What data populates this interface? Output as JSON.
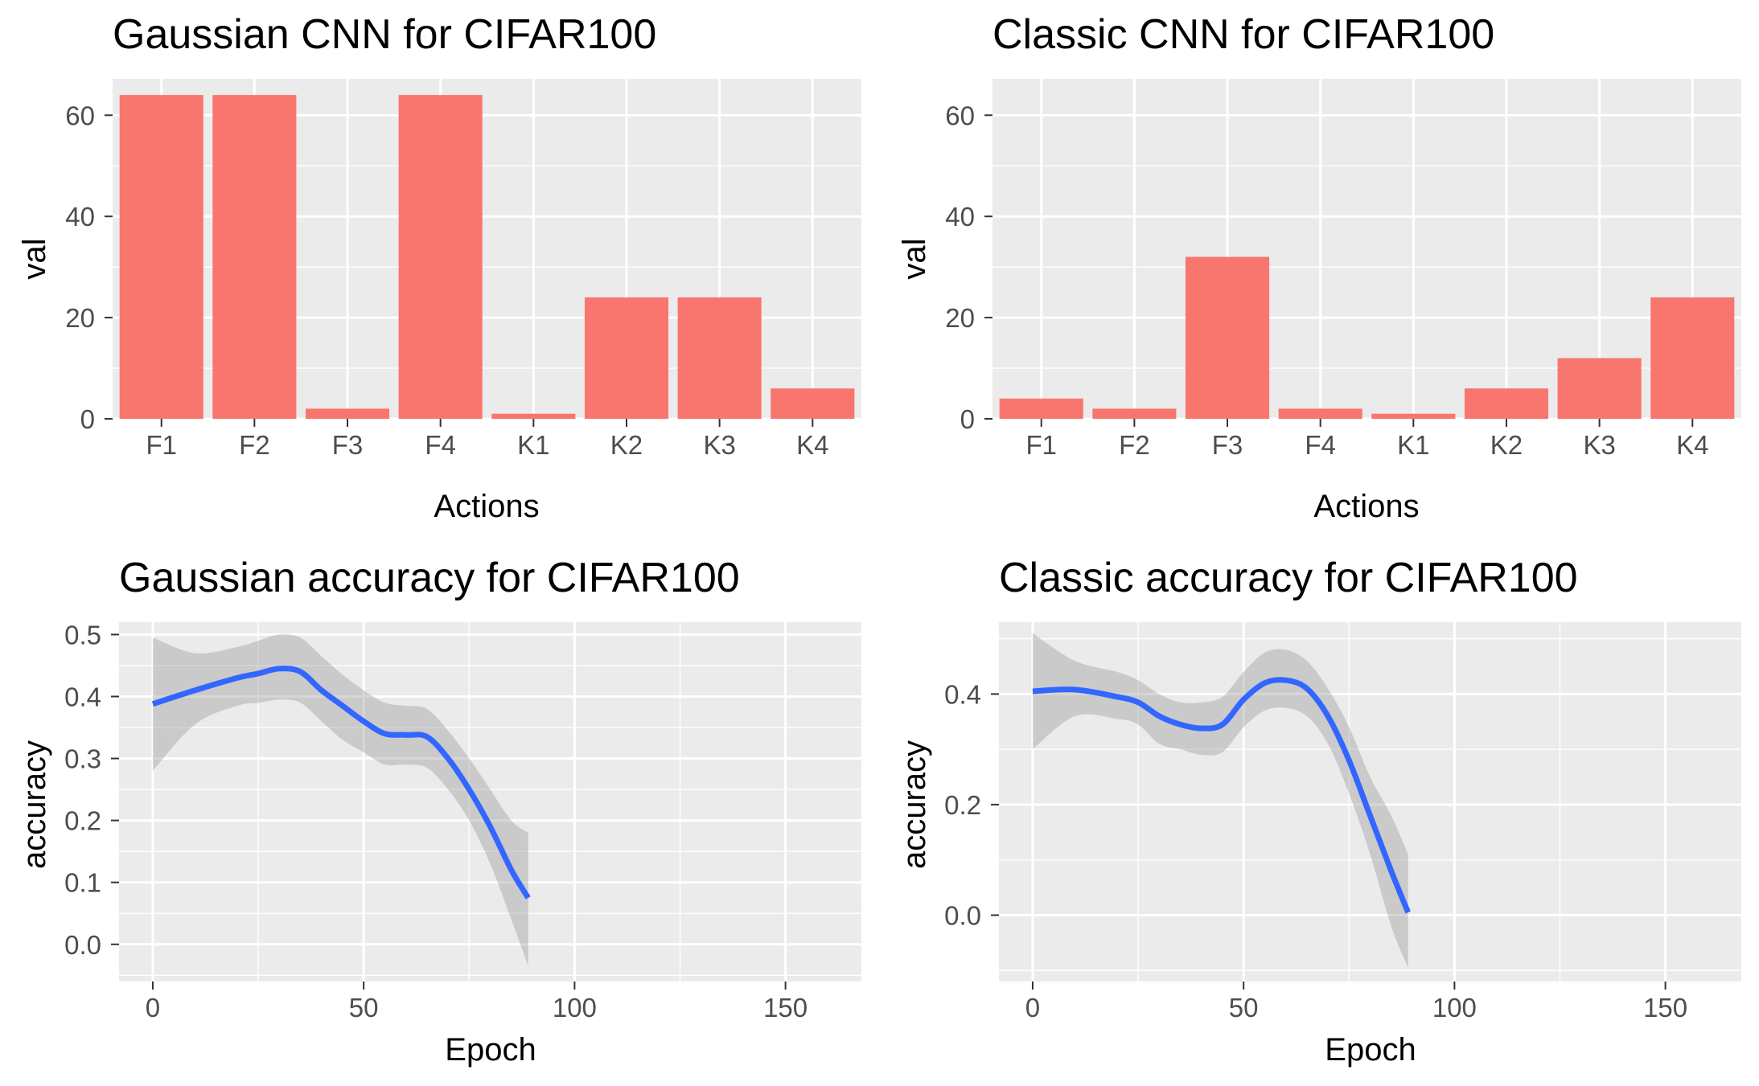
{
  "chart_data": [
    {
      "type": "bar",
      "title": "Gaussian CNN for  CIFAR100",
      "xlabel": "Actions",
      "ylabel": "val",
      "categories": [
        "F1",
        "F2",
        "F3",
        "F4",
        "K1",
        "K2",
        "K3",
        "K4"
      ],
      "values": [
        64,
        64,
        2,
        64,
        1,
        24,
        24,
        6
      ],
      "ylim": [
        0,
        67.2
      ],
      "yticks": [
        0,
        20,
        40,
        60
      ],
      "grid": true,
      "colors": {
        "bar": "#F8766D",
        "panel": "#EBEBEB",
        "grid": "#FFFFFF"
      }
    },
    {
      "type": "bar",
      "title": "Classic CNN for  CIFAR100",
      "xlabel": "Actions",
      "ylabel": "val",
      "categories": [
        "F1",
        "F2",
        "F3",
        "F4",
        "K1",
        "K2",
        "K3",
        "K4"
      ],
      "values": [
        4,
        2,
        32,
        2,
        1,
        6,
        12,
        24
      ],
      "ylim": [
        0,
        67.2
      ],
      "yticks": [
        0,
        20,
        40,
        60
      ],
      "grid": true,
      "colors": {
        "bar": "#F8766D",
        "panel": "#EBEBEB",
        "grid": "#FFFFFF"
      }
    },
    {
      "type": "line",
      "title": "Gaussian accuracy for  CIFAR100",
      "xlabel": "Epoch",
      "ylabel": "accuracy",
      "xlim": [
        -8,
        168
      ],
      "ylim": [
        -0.06,
        0.52
      ],
      "xticks": [
        0,
        50,
        100,
        150
      ],
      "yticks": [
        0.0,
        0.1,
        0.2,
        0.3,
        0.4,
        0.5
      ],
      "ytick_labels": [
        "0.0",
        "0.1",
        "0.2",
        "0.3",
        "0.4",
        "0.5"
      ],
      "grid": true,
      "series": [
        {
          "x": [
            0,
            10,
            20,
            25,
            30,
            35,
            40,
            45,
            50,
            55,
            60,
            65,
            70,
            75,
            80,
            85,
            89
          ],
          "y": [
            0.388,
            0.41,
            0.43,
            0.437,
            0.445,
            0.44,
            0.41,
            0.385,
            0.36,
            0.34,
            0.338,
            0.335,
            0.3,
            0.25,
            0.19,
            0.12,
            0.075
          ],
          "lower": [
            0.28,
            0.355,
            0.385,
            0.39,
            0.395,
            0.39,
            0.36,
            0.33,
            0.31,
            0.29,
            0.29,
            0.285,
            0.25,
            0.2,
            0.13,
            0.04,
            -0.035
          ],
          "upper": [
            0.495,
            0.47,
            0.48,
            0.49,
            0.5,
            0.495,
            0.465,
            0.435,
            0.41,
            0.39,
            0.385,
            0.38,
            0.345,
            0.3,
            0.25,
            0.2,
            0.18
          ]
        }
      ],
      "colors": {
        "line": "#3366FF",
        "ribbon": "#999999",
        "panel": "#EBEBEB",
        "grid": "#FFFFFF"
      }
    },
    {
      "type": "line",
      "title": "Classic accuracy for  CIFAR100",
      "xlabel": "Epoch",
      "ylabel": "accuracy",
      "xlim": [
        -8,
        168
      ],
      "ylim": [
        -0.12,
        0.53
      ],
      "xticks": [
        0,
        50,
        100,
        150
      ],
      "yticks": [
        0.0,
        0.2,
        0.4
      ],
      "ytick_labels": [
        "0.0",
        "0.2",
        "0.4"
      ],
      "grid": true,
      "series": [
        {
          "x": [
            0,
            10,
            20,
            25,
            30,
            35,
            40,
            45,
            50,
            55,
            60,
            65,
            70,
            75,
            80,
            85,
            89
          ],
          "y": [
            0.405,
            0.408,
            0.395,
            0.385,
            0.36,
            0.345,
            0.338,
            0.345,
            0.39,
            0.42,
            0.425,
            0.41,
            0.36,
            0.28,
            0.18,
            0.08,
            0.005
          ],
          "lower": [
            0.3,
            0.36,
            0.355,
            0.345,
            0.31,
            0.3,
            0.29,
            0.295,
            0.34,
            0.37,
            0.375,
            0.36,
            0.31,
            0.22,
            0.11,
            -0.02,
            -0.095
          ],
          "upper": [
            0.51,
            0.46,
            0.44,
            0.425,
            0.4,
            0.385,
            0.385,
            0.395,
            0.44,
            0.475,
            0.48,
            0.46,
            0.41,
            0.34,
            0.25,
            0.18,
            0.11
          ]
        }
      ],
      "colors": {
        "line": "#3366FF",
        "ribbon": "#999999",
        "panel": "#EBEBEB",
        "grid": "#FFFFFF"
      }
    }
  ]
}
